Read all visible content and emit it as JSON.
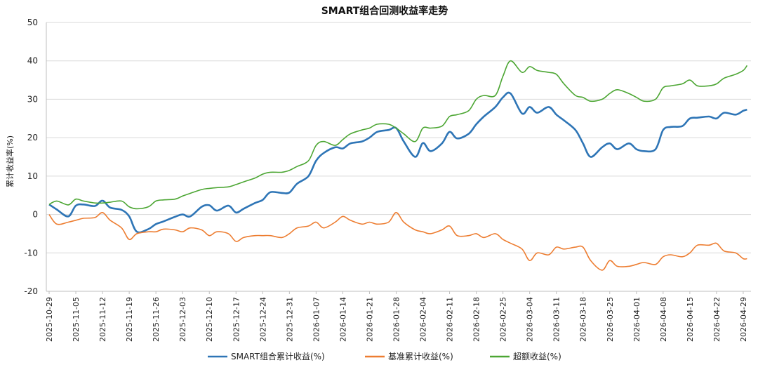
{
  "chart_data": {
    "type": "line",
    "title": "SMART组合回测收益率走势",
    "ylabel": "累计收益率(%)",
    "xlabel": "",
    "ylim": [
      -20,
      50
    ],
    "yticks": [
      50,
      40,
      30,
      20,
      10,
      0,
      -10,
      -20
    ],
    "grid": "horizontal",
    "legend_position": "bottom",
    "x_tick_labels": [
      "2025-10-29",
      "2025-11-05",
      "2025-11-12",
      "2025-11-19",
      "2025-11-26",
      "2025-12-03",
      "2025-12-10",
      "2025-12-17",
      "2025-12-24",
      "2025-12-31",
      "2026-01-07",
      "2026-01-14",
      "2026-01-21",
      "2026-01-28",
      "2026-02-04",
      "2026-02-11",
      "2026-02-18",
      "2026-02-25",
      "2026-03-04",
      "2026-03-11",
      "2026-03-18",
      "2026-03-25",
      "2026-04-01",
      "2026-04-08",
      "2026-04-15",
      "2026-04-22",
      "2026-04-29"
    ],
    "x": [
      "2025-10-29",
      "2025-10-31",
      "2025-11-03",
      "2025-11-05",
      "2025-11-07",
      "2025-11-10",
      "2025-11-12",
      "2025-11-14",
      "2025-11-17",
      "2025-11-19",
      "2025-11-21",
      "2025-11-24",
      "2025-11-26",
      "2025-11-28",
      "2025-12-01",
      "2025-12-03",
      "2025-12-05",
      "2025-12-08",
      "2025-12-10",
      "2025-12-12",
      "2025-12-15",
      "2025-12-17",
      "2025-12-19",
      "2025-12-22",
      "2025-12-24",
      "2025-12-26",
      "2025-12-29",
      "2025-12-31",
      "2026-01-02",
      "2026-01-05",
      "2026-01-07",
      "2026-01-09",
      "2026-01-12",
      "2026-01-14",
      "2026-01-16",
      "2026-01-19",
      "2026-01-21",
      "2026-01-23",
      "2026-01-26",
      "2026-01-28",
      "2026-01-30",
      "2026-02-02",
      "2026-02-04",
      "2026-02-06",
      "2026-02-09",
      "2026-02-11",
      "2026-02-13",
      "2026-02-16",
      "2026-02-18",
      "2026-02-20",
      "2026-02-23",
      "2026-02-25",
      "2026-02-27",
      "2026-03-02",
      "2026-03-04",
      "2026-03-06",
      "2026-03-09",
      "2026-03-11",
      "2026-03-13",
      "2026-03-16",
      "2026-03-18",
      "2026-03-20",
      "2026-03-23",
      "2026-03-25",
      "2026-03-27",
      "2026-03-30",
      "2026-04-01",
      "2026-04-03",
      "2026-04-06",
      "2026-04-08",
      "2026-04-10",
      "2026-04-13",
      "2026-04-15",
      "2026-04-17",
      "2026-04-20",
      "2026-04-22",
      "2026-04-24",
      "2026-04-27",
      "2026-04-29",
      "2026-04-30"
    ],
    "series": [
      {
        "name": "SMART组合累计收益(%)",
        "color": "#2E75B6",
        "values": [
          2.6,
          1.3,
          -0.5,
          2.3,
          2.6,
          2.2,
          3.6,
          1.8,
          1.2,
          -0.5,
          -4.5,
          -3.8,
          -2.5,
          -1.8,
          -0.6,
          0,
          -0.5,
          2.0,
          2.4,
          1.0,
          2.3,
          0.5,
          1.5,
          3.0,
          3.8,
          5.8,
          5.6,
          5.7,
          8.0,
          10.0,
          14.0,
          16.0,
          17.5,
          17.2,
          18.5,
          19.0,
          20.0,
          21.5,
          22.0,
          22.5,
          19.0,
          15.0,
          18.6,
          16.5,
          18.5,
          21.5,
          19.8,
          21.0,
          23.5,
          25.5,
          28.0,
          30.5,
          31.5,
          26.3,
          28.0,
          26.5,
          28.0,
          26.0,
          24.5,
          22.0,
          18.5,
          15.0,
          17.5,
          18.5,
          17.0,
          18.5,
          17.0,
          16.5,
          17.0,
          22.0,
          22.8,
          23.0,
          25.0,
          25.2,
          25.5,
          25.0,
          26.5,
          26.0,
          27.0,
          27.3
        ]
      },
      {
        "name": "基准累计收益(%)",
        "color": "#ED7D31",
        "values": [
          0,
          -2.5,
          -2.0,
          -1.5,
          -1.0,
          -0.8,
          0.5,
          -1.5,
          -3.5,
          -6.5,
          -5.0,
          -4.5,
          -4.5,
          -3.8,
          -4.0,
          -4.5,
          -3.5,
          -4.0,
          -5.5,
          -4.5,
          -5.0,
          -7.0,
          -6.0,
          -5.5,
          -5.5,
          -5.5,
          -6.0,
          -5.0,
          -3.5,
          -3.0,
          -2.0,
          -3.5,
          -2.0,
          -0.5,
          -1.5,
          -2.5,
          -2.0,
          -2.5,
          -2.0,
          0.5,
          -2.0,
          -4.0,
          -4.5,
          -5.0,
          -4.0,
          -3.0,
          -5.5,
          -5.5,
          -5.0,
          -6.0,
          -5.0,
          -6.5,
          -7.5,
          -9.0,
          -12.0,
          -10.0,
          -10.5,
          -8.5,
          -9.0,
          -8.5,
          -8.5,
          -12.0,
          -14.5,
          -12.0,
          -13.5,
          -13.5,
          -13.0,
          -12.5,
          -13.0,
          -11.0,
          -10.5,
          -11.0,
          -10.0,
          -8.0,
          -8.0,
          -7.5,
          -9.5,
          -10.0,
          -11.5,
          -11.5
        ]
      },
      {
        "name": "超额收益(%)",
        "color": "#4CA633",
        "values": [
          2.6,
          3.5,
          2.5,
          4.0,
          3.5,
          3.0,
          3.0,
          3.2,
          3.5,
          2.0,
          1.5,
          2.0,
          3.5,
          3.8,
          4.0,
          4.8,
          5.5,
          6.5,
          6.8,
          7.0,
          7.2,
          7.8,
          8.5,
          9.5,
          10.5,
          11.0,
          11.0,
          11.5,
          12.5,
          14.0,
          18.0,
          19.0,
          18.0,
          19.5,
          21.0,
          22.0,
          22.5,
          23.5,
          23.5,
          22.5,
          21.0,
          19.0,
          22.5,
          22.5,
          23.0,
          25.5,
          26.0,
          27.0,
          30.0,
          31.0,
          31.0,
          36.0,
          40.0,
          37.0,
          38.5,
          37.5,
          37.0,
          36.5,
          34.0,
          31.0,
          30.5,
          29.5,
          30.0,
          31.5,
          32.5,
          31.5,
          30.5,
          29.5,
          30.0,
          33.0,
          33.5,
          34.0,
          35.0,
          33.5,
          33.5,
          34.0,
          35.5,
          36.5,
          37.5,
          38.8
        ]
      }
    ]
  }
}
